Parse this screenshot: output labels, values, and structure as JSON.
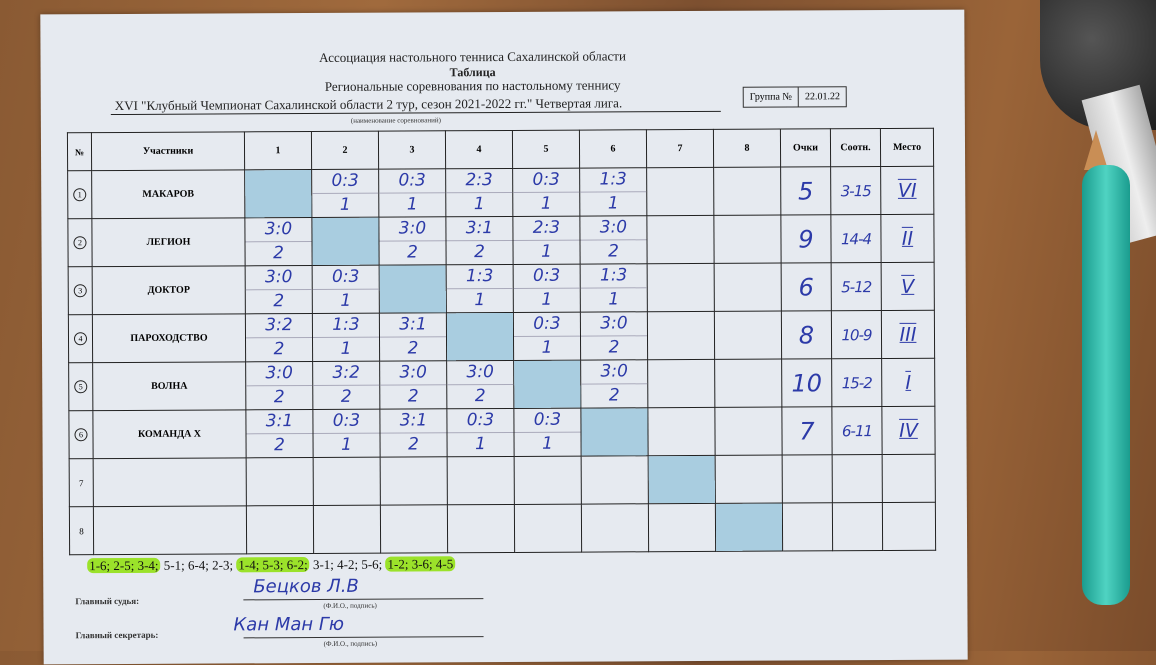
{
  "header": {
    "org": "Ассоциация настольного тенниса Сахалинской области",
    "doc_type": "Таблица",
    "subtitle": "Региональные соревнования по настольному теннису",
    "competition": "XVI  \"Клубный Чемпионат Сахалинской области 2 тур, сезон 2021-2022 гг.\" Четвертая лига.",
    "caption": "(наименование соревнований)",
    "group_label": "Группа №",
    "date": "22.01.22"
  },
  "table": {
    "columns": [
      "№",
      "Участники",
      "1",
      "2",
      "3",
      "4",
      "5",
      "6",
      "7",
      "8",
      "Очки",
      "Соотн.",
      "Место"
    ],
    "rows": [
      {
        "no": "1",
        "name": "МАКАРОВ",
        "cells": [
          null,
          [
            "0:3",
            "1"
          ],
          [
            "0:3",
            "1"
          ],
          [
            "2:3",
            "1"
          ],
          [
            "0:3",
            "1"
          ],
          [
            "1:3",
            "1"
          ],
          [],
          []
        ],
        "points": "5",
        "ratio": "3-15",
        "place": "VI"
      },
      {
        "no": "2",
        "name": "ЛЕГИОН",
        "cells": [
          [
            "3:0",
            "2"
          ],
          null,
          [
            "3:0",
            "2"
          ],
          [
            "3:1",
            "2"
          ],
          [
            "2:3",
            "1"
          ],
          [
            "3:0",
            "2"
          ],
          [],
          []
        ],
        "points": "9",
        "ratio": "14-4",
        "place": "II"
      },
      {
        "no": "3",
        "name": "ДОКТОР",
        "cells": [
          [
            "3:0",
            "2"
          ],
          [
            "0:3",
            "1"
          ],
          null,
          [
            "1:3",
            "1"
          ],
          [
            "0:3",
            "1"
          ],
          [
            "1:3",
            "1"
          ],
          [],
          []
        ],
        "points": "6",
        "ratio": "5-12",
        "place": "V"
      },
      {
        "no": "4",
        "name": "ПАРОХОДСТВО",
        "cells": [
          [
            "3:2",
            "2"
          ],
          [
            "1:3",
            "1"
          ],
          [
            "3:1",
            "2"
          ],
          null,
          [
            "0:3",
            "1"
          ],
          [
            "3:0",
            "2"
          ],
          [],
          []
        ],
        "points": "8",
        "ratio": "10-9",
        "place": "III"
      },
      {
        "no": "5",
        "name": "ВОЛНА",
        "cells": [
          [
            "3:0",
            "2"
          ],
          [
            "3:2",
            "2"
          ],
          [
            "3:0",
            "2"
          ],
          [
            "3:0",
            "2"
          ],
          null,
          [
            "3:0",
            "2"
          ],
          [],
          []
        ],
        "points": "10",
        "ratio": "15-2",
        "place": "I"
      },
      {
        "no": "6",
        "name": "КОМАНДА Х",
        "cells": [
          [
            "3:1",
            "2"
          ],
          [
            "0:3",
            "1"
          ],
          [
            "3:1",
            "2"
          ],
          [
            "0:3",
            "1"
          ],
          [
            "0:3",
            "1"
          ],
          null,
          [],
          []
        ],
        "points": "7",
        "ratio": "6-11",
        "place": "IV"
      },
      {
        "no": "7",
        "name": "",
        "cells": [
          [],
          [],
          [],
          [],
          [],
          [],
          null,
          []
        ],
        "points": "",
        "ratio": "",
        "place": ""
      },
      {
        "no": "8",
        "name": "",
        "cells": [
          [],
          [],
          [],
          [],
          [],
          [],
          [],
          null
        ],
        "points": "",
        "ratio": "",
        "place": ""
      }
    ],
    "diagonal_color": "#a9cde0"
  },
  "schedule": [
    {
      "text": "1-6; 2-5; 3-4;",
      "highlighted": true
    },
    {
      "text": " 5-1; 6-4; 2-3; ",
      "highlighted": false
    },
    {
      "text": "1-4; 5-3; 6-2;",
      "highlighted": true
    },
    {
      "text": " 3-1; 4-2; 5-6; ",
      "highlighted": false
    },
    {
      "text": "1-2; 3-6; 4-5",
      "highlighted": true
    }
  ],
  "footer": {
    "judge_label": "Главный судья:",
    "judge_name": "Бецков Л.В",
    "secretary_label": "Главный секретарь:",
    "secretary_name": "Кан Ман Гю",
    "fio_caption": "(Ф.И.О., подпись)"
  },
  "colors": {
    "ink": "#2c3aa8",
    "highlight": "#9be22a",
    "paper": "#e6eaf0"
  }
}
